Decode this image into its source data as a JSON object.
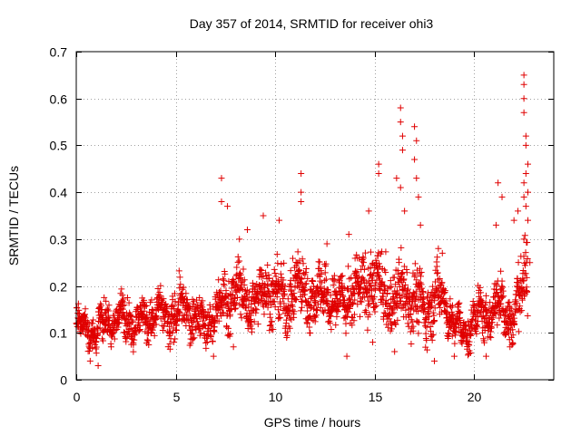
{
  "chart_data": {
    "type": "scatter",
    "title": "Day 357 of 2014, SRMTID for receiver ohi3",
    "xlabel": "GPS time / hours",
    "ylabel": "SRMTID / TECUs",
    "xlim": [
      0,
      24
    ],
    "ylim": [
      0,
      0.7
    ],
    "x_ticks": [
      0,
      5,
      10,
      15,
      20
    ],
    "y_ticks": [
      0,
      0.1,
      0.2,
      0.3,
      0.4,
      0.5,
      0.6,
      0.7
    ],
    "x_tick_labels": [
      "0",
      "5",
      "10",
      "15",
      "20"
    ],
    "y_tick_labels": [
      "0",
      "0.1",
      "0.2",
      "0.3",
      "0.4",
      "0.5",
      "0.6",
      "0.7"
    ],
    "grid": true,
    "marker": "+",
    "marker_color": "#e00000",
    "series_envelope": {
      "name": "SRMTID",
      "x": [
        0,
        0.5,
        1,
        1.5,
        2,
        2.5,
        3,
        3.5,
        4,
        4.5,
        5,
        5.5,
        6,
        6.5,
        7,
        7.5,
        8,
        8.5,
        9,
        9.5,
        10,
        10.5,
        11,
        11.5,
        12,
        12.5,
        13,
        13.5,
        14,
        14.5,
        15,
        15.5,
        16,
        16.5,
        17,
        17.5,
        18,
        18.5,
        19,
        19.5,
        20,
        20.5,
        21,
        21.5,
        22,
        22.5,
        22.7
      ],
      "center": [
        0.11,
        0.11,
        0.1,
        0.13,
        0.12,
        0.14,
        0.12,
        0.13,
        0.14,
        0.13,
        0.14,
        0.15,
        0.13,
        0.12,
        0.14,
        0.17,
        0.19,
        0.17,
        0.16,
        0.2,
        0.18,
        0.16,
        0.2,
        0.19,
        0.17,
        0.19,
        0.16,
        0.17,
        0.19,
        0.2,
        0.21,
        0.18,
        0.16,
        0.2,
        0.17,
        0.15,
        0.17,
        0.18,
        0.11,
        0.1,
        0.13,
        0.14,
        0.15,
        0.16,
        0.12,
        0.22,
        0.25
      ],
      "spread": [
        0.04,
        0.04,
        0.04,
        0.05,
        0.04,
        0.05,
        0.04,
        0.05,
        0.05,
        0.05,
        0.06,
        0.06,
        0.05,
        0.05,
        0.06,
        0.07,
        0.07,
        0.07,
        0.06,
        0.07,
        0.07,
        0.07,
        0.08,
        0.07,
        0.07,
        0.07,
        0.06,
        0.07,
        0.07,
        0.08,
        0.08,
        0.08,
        0.08,
        0.09,
        0.08,
        0.07,
        0.07,
        0.06,
        0.04,
        0.04,
        0.05,
        0.05,
        0.06,
        0.07,
        0.06,
        0.09,
        0.1
      ]
    },
    "spikes": [
      {
        "x": 7.3,
        "y": 0.43
      },
      {
        "x": 7.3,
        "y": 0.38
      },
      {
        "x": 7.6,
        "y": 0.37
      },
      {
        "x": 8.2,
        "y": 0.3
      },
      {
        "x": 8.6,
        "y": 0.32
      },
      {
        "x": 9.4,
        "y": 0.35
      },
      {
        "x": 10.2,
        "y": 0.34
      },
      {
        "x": 11.3,
        "y": 0.44
      },
      {
        "x": 11.3,
        "y": 0.4
      },
      {
        "x": 11.3,
        "y": 0.38
      },
      {
        "x": 12.6,
        "y": 0.29
      },
      {
        "x": 13.7,
        "y": 0.31
      },
      {
        "x": 14.7,
        "y": 0.36
      },
      {
        "x": 15.2,
        "y": 0.46
      },
      {
        "x": 15.2,
        "y": 0.44
      },
      {
        "x": 16.1,
        "y": 0.43
      },
      {
        "x": 16.3,
        "y": 0.58
      },
      {
        "x": 16.3,
        "y": 0.55
      },
      {
        "x": 16.4,
        "y": 0.52
      },
      {
        "x": 16.4,
        "y": 0.49
      },
      {
        "x": 16.3,
        "y": 0.41
      },
      {
        "x": 16.5,
        "y": 0.36
      },
      {
        "x": 17.0,
        "y": 0.54
      },
      {
        "x": 17.1,
        "y": 0.51
      },
      {
        "x": 17.0,
        "y": 0.47
      },
      {
        "x": 17.1,
        "y": 0.43
      },
      {
        "x": 17.2,
        "y": 0.39
      },
      {
        "x": 17.3,
        "y": 0.33
      },
      {
        "x": 18.2,
        "y": 0.28
      },
      {
        "x": 18.4,
        "y": 0.27
      },
      {
        "x": 21.2,
        "y": 0.42
      },
      {
        "x": 21.4,
        "y": 0.39
      },
      {
        "x": 21.1,
        "y": 0.33
      },
      {
        "x": 22.0,
        "y": 0.34
      },
      {
        "x": 22.2,
        "y": 0.36
      },
      {
        "x": 22.5,
        "y": 0.65
      },
      {
        "x": 22.5,
        "y": 0.63
      },
      {
        "x": 22.5,
        "y": 0.6
      },
      {
        "x": 22.5,
        "y": 0.57
      },
      {
        "x": 22.6,
        "y": 0.52
      },
      {
        "x": 22.6,
        "y": 0.5
      },
      {
        "x": 22.7,
        "y": 0.46
      },
      {
        "x": 22.6,
        "y": 0.44
      },
      {
        "x": 22.5,
        "y": 0.42
      },
      {
        "x": 22.7,
        "y": 0.4
      },
      {
        "x": 22.5,
        "y": 0.39
      },
      {
        "x": 22.6,
        "y": 0.37
      },
      {
        "x": 22.7,
        "y": 0.34
      },
      {
        "x": 22.5,
        "y": 0.3
      },
      {
        "x": 22.8,
        "y": 0.25
      }
    ],
    "dips": [
      {
        "x": 1.1,
        "y": 0.03
      },
      {
        "x": 0.7,
        "y": 0.04
      },
      {
        "x": 6.9,
        "y": 0.05
      },
      {
        "x": 7.9,
        "y": 0.07
      },
      {
        "x": 13.6,
        "y": 0.05
      },
      {
        "x": 14.9,
        "y": 0.08
      },
      {
        "x": 16.0,
        "y": 0.06
      },
      {
        "x": 18.0,
        "y": 0.04
      },
      {
        "x": 19.0,
        "y": 0.05
      },
      {
        "x": 20.6,
        "y": 0.05
      },
      {
        "x": 21.8,
        "y": 0.07
      }
    ]
  }
}
